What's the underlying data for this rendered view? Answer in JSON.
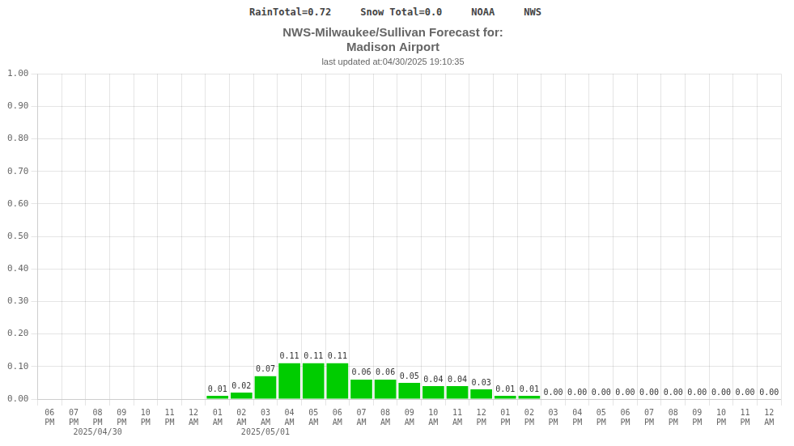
{
  "chart_data": {
    "type": "bar",
    "title": [
      "NWS-Milwaukee/Sullivan Forecast for:",
      "Madison Airport"
    ],
    "subtitle": "last updated at:04/30/2025 19:10:35",
    "annotations": [
      "RainTotal=0.72",
      "Snow Total=0.0",
      "NOAA",
      "NWS"
    ],
    "categories": [
      [
        "06",
        "PM"
      ],
      [
        "07",
        "PM"
      ],
      [
        "08",
        "PM",
        "2025/04/30"
      ],
      [
        "09",
        "PM"
      ],
      [
        "10",
        "PM"
      ],
      [
        "11",
        "PM"
      ],
      [
        "12",
        "AM"
      ],
      [
        "01",
        "AM"
      ],
      [
        "02",
        "AM"
      ],
      [
        "03",
        "AM",
        "2025/05/01"
      ],
      [
        "04",
        "AM"
      ],
      [
        "05",
        "AM"
      ],
      [
        "06",
        "AM"
      ],
      [
        "07",
        "AM"
      ],
      [
        "08",
        "AM"
      ],
      [
        "09",
        "AM"
      ],
      [
        "10",
        "AM"
      ],
      [
        "11",
        "AM"
      ],
      [
        "12",
        "PM"
      ],
      [
        "01",
        "PM"
      ],
      [
        "02",
        "PM"
      ],
      [
        "03",
        "PM"
      ],
      [
        "04",
        "PM"
      ],
      [
        "05",
        "PM"
      ],
      [
        "06",
        "PM"
      ],
      [
        "07",
        "PM"
      ],
      [
        "08",
        "PM"
      ],
      [
        "09",
        "PM"
      ],
      [
        "10",
        "PM"
      ],
      [
        "11",
        "PM"
      ],
      [
        "12",
        "AM"
      ]
    ],
    "values": [
      0.0,
      0.0,
      0.0,
      0.0,
      0.0,
      0.0,
      0.0,
      0.01,
      0.02,
      0.07,
      0.11,
      0.11,
      0.11,
      0.06,
      0.06,
      0.05,
      0.04,
      0.04,
      0.03,
      0.01,
      0.01,
      0.0,
      0.0,
      0.0,
      0.0,
      0.0,
      0.0,
      0.0,
      0.0,
      0.0,
      0.0
    ],
    "value_labels": [
      null,
      null,
      null,
      null,
      null,
      null,
      null,
      "0.01",
      "0.02",
      "0.07",
      "0.11",
      "0.11",
      "0.11",
      "0.06",
      "0.06",
      "0.05",
      "0.04",
      "0.04",
      "0.03",
      "0.01",
      "0.01",
      "0.00",
      "0.00",
      "0.00",
      "0.00",
      "0.00",
      "0.00",
      "0.00",
      "0.00",
      "0.00",
      "0.00"
    ],
    "data_labels": true,
    "color": "#00cc00",
    "ylim": [
      0.0,
      1.0
    ],
    "yticks": [
      {
        "value": 0.0,
        "label": "0.00"
      },
      {
        "value": 0.1,
        "label": "0.10"
      },
      {
        "value": 0.2,
        "label": "0.20"
      },
      {
        "value": 0.3,
        "label": "0.30"
      },
      {
        "value": 0.4,
        "label": "0.40"
      },
      {
        "value": 0.5,
        "label": "0.50"
      },
      {
        "value": 0.6,
        "label": "0.60"
      },
      {
        "value": 0.7,
        "label": "0.70"
      },
      {
        "value": 0.8,
        "label": "0.80"
      },
      {
        "value": 0.9,
        "label": "0.90"
      },
      {
        "value": 1.0,
        "label": "1.00"
      }
    ],
    "grid": true
  }
}
